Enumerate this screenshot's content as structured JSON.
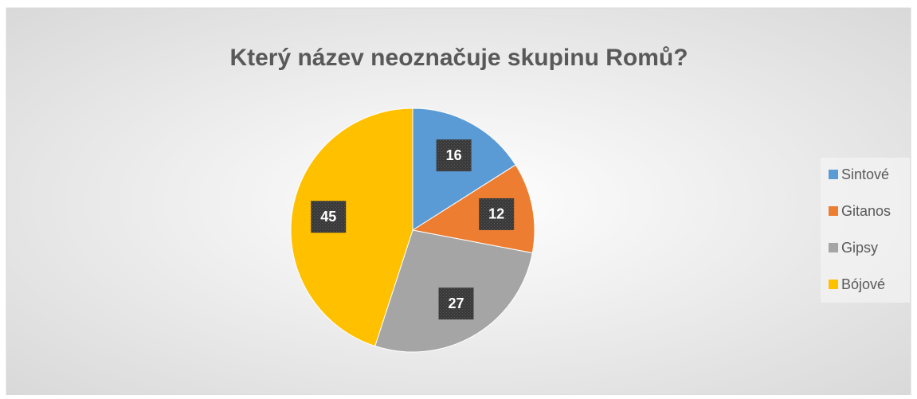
{
  "chart_data": {
    "type": "pie",
    "title": "Který název neoznačuje skupinu Romů?",
    "categories": [
      "Sintové",
      "Gitanos",
      "Gipsy",
      "Bójové"
    ],
    "values": [
      16,
      12,
      27,
      45
    ],
    "colors": [
      "#5b9bd5",
      "#ed7d31",
      "#a5a5a5",
      "#ffc000"
    ],
    "legend": "right"
  }
}
